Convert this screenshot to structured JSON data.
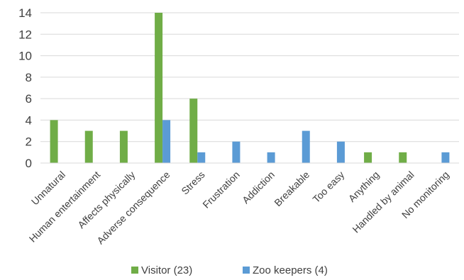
{
  "chart_data": {
    "type": "bar",
    "categories": [
      "Unnatural",
      "Human entertainment",
      "Affects physically",
      "Adverse consequence",
      "Stress",
      "Frustration",
      "Addiction",
      "Breakable",
      "Too easy",
      "Anything",
      "Handled by animal",
      "No monitoring"
    ],
    "series": [
      {
        "name": "Visitor (23)",
        "color": "#70ad47",
        "values": [
          4,
          3,
          3,
          14,
          6,
          0,
          0,
          0,
          0,
          1,
          1,
          0
        ]
      },
      {
        "name": "Zoo keepers (4)",
        "color": "#5b9bd5",
        "values": [
          0,
          0,
          0,
          4,
          1,
          2,
          1,
          3,
          2,
          0,
          0,
          1
        ]
      }
    ],
    "ylim": [
      0,
      14
    ],
    "yticks": [
      0,
      2,
      4,
      6,
      8,
      10,
      12,
      14
    ],
    "grid": true,
    "legend": "bottom"
  }
}
